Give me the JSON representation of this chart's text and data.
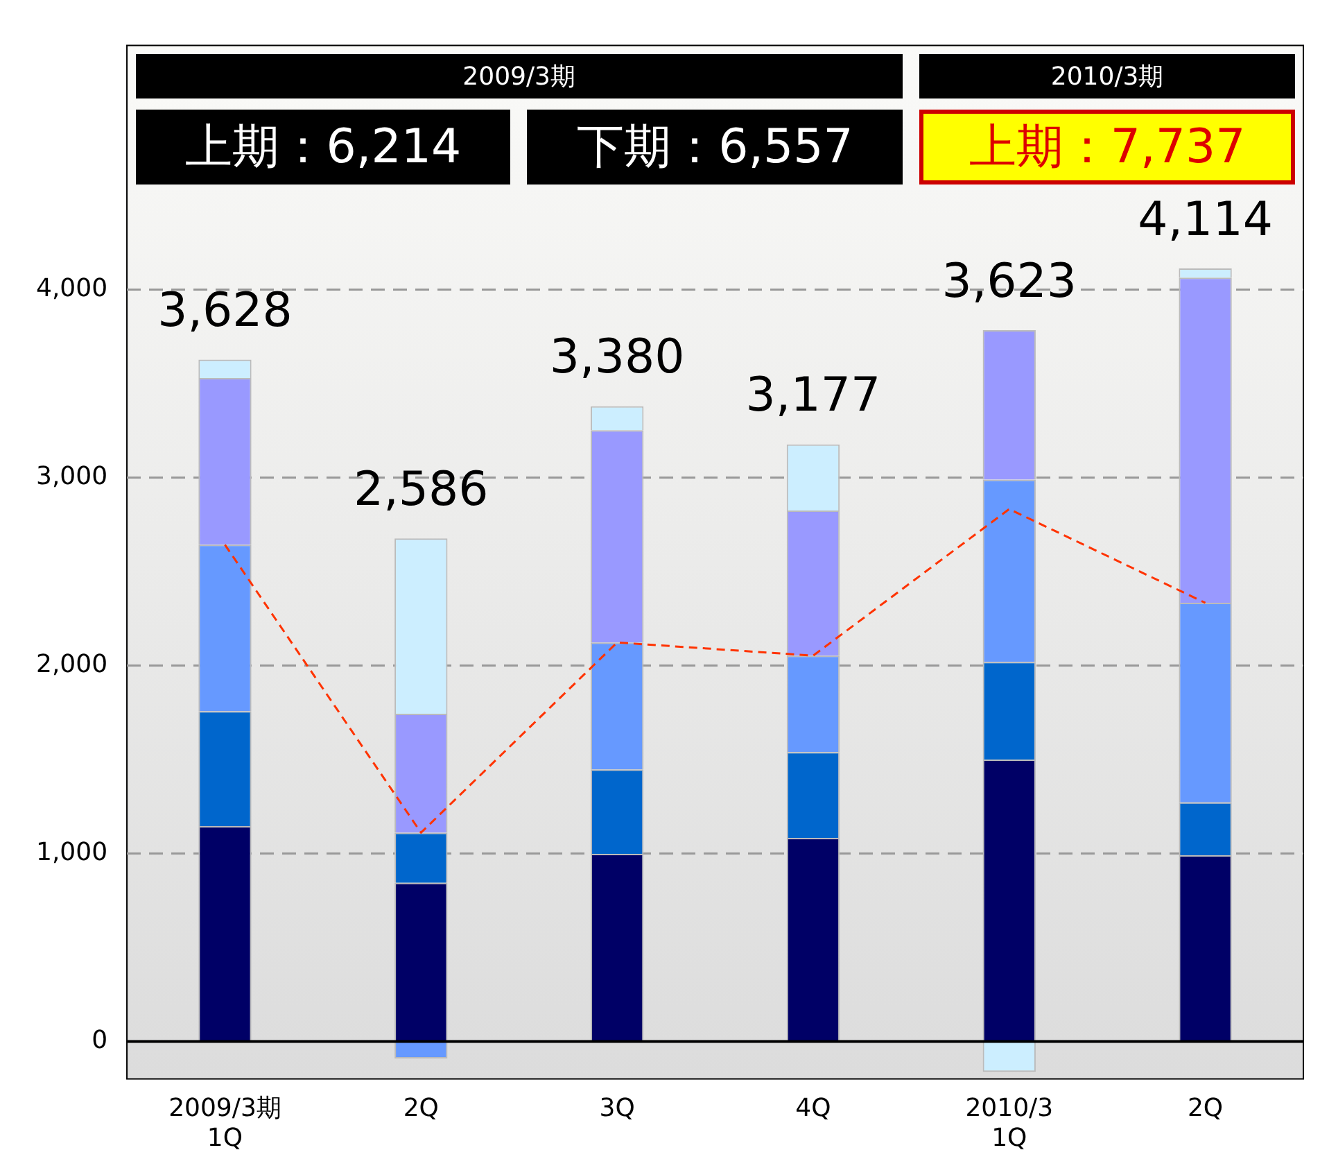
{
  "chart_data": {
    "type": "bar",
    "stacked": true,
    "categories": [
      "2009/3期\n1Q",
      "2Q",
      "3Q",
      "4Q",
      "2010/3\n1Q",
      "2Q"
    ],
    "series": [
      {
        "color": "#000066",
        "values": [
          1146,
          844,
          998,
          1083,
          1500,
          991
        ]
      },
      {
        "color": "#0066cc",
        "values": [
          612,
          267,
          450,
          457,
          520,
          281
        ]
      },
      {
        "color": "#6699ff",
        "values": [
          886,
          -91,
          675,
          513,
          970,
          1062
        ]
      },
      {
        "color": "#9999ff",
        "values": [
          886,
          633,
          1130,
          772,
          795,
          1731
        ]
      },
      {
        "color": "#cceeff",
        "values": [
          98,
          933,
          127,
          352,
          -162,
          49
        ]
      },
      {
        "type": "line",
        "color": "#ff3300",
        "line_style": "dashed",
        "marker": "none",
        "values": [
          2643,
          1111,
          2123,
          2053,
          2833,
          2334
        ]
      }
    ],
    "totals": [
      "3,628",
      "2,586",
      "3,380",
      "3,177",
      "3,623",
      "4,114"
    ],
    "annotations": [
      "2009/3期",
      "上期：6,214",
      "下期：6,557",
      "2010/3期",
      "上期：7,737"
    ],
    "ylim": [
      -200,
      5300
    ],
    "yticks": [
      0,
      {
        "value": 1000,
        "label": "1,000"
      },
      {
        "value": 2000,
        "label": "2,000"
      },
      {
        "value": 3000,
        "label": "3,000"
      },
      {
        "value": 4000,
        "label": "4,000"
      }
    ],
    "grid": "y",
    "legend": false
  }
}
